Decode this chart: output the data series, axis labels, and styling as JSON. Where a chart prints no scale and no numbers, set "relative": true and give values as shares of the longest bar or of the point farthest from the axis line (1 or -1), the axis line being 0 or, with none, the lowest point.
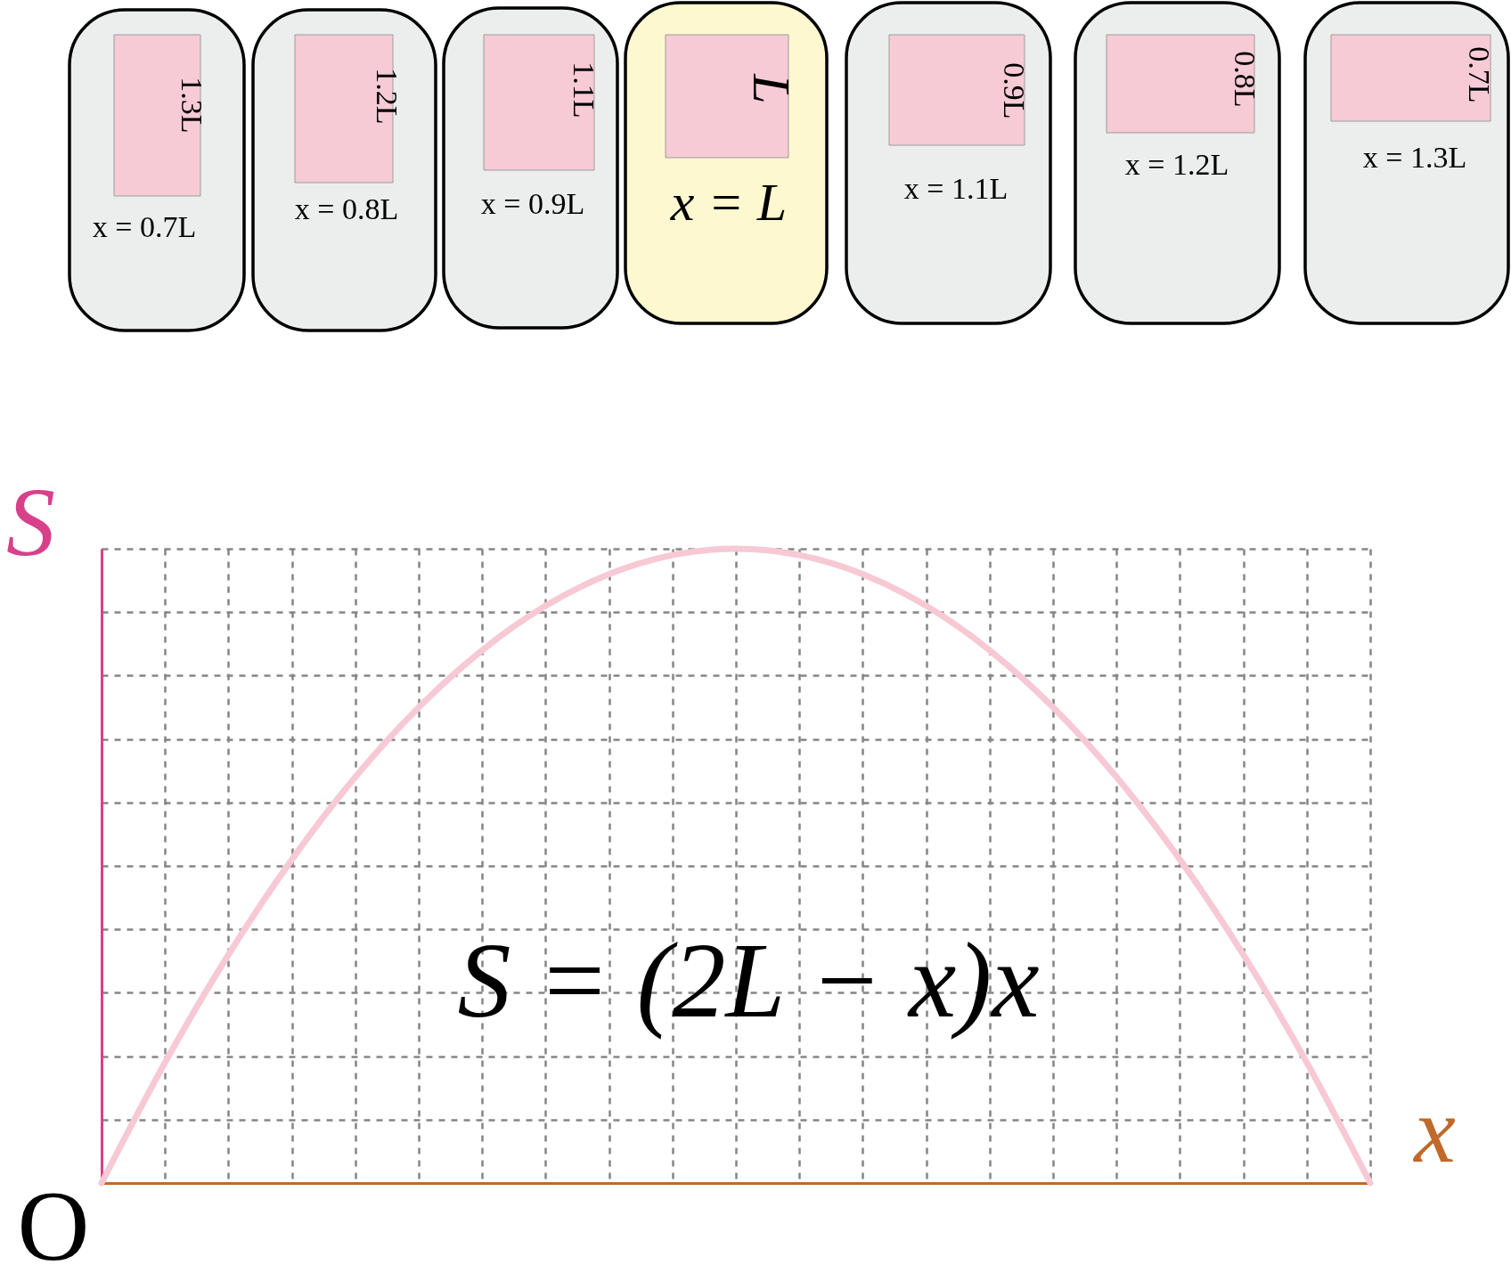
{
  "chart_data": {
    "type": "line",
    "relative": true,
    "categories": [
      null,
      null,
      null,
      null,
      null,
      null,
      null,
      null,
      null,
      null,
      null,
      null,
      null,
      null,
      null,
      null,
      null,
      null,
      null,
      null,
      null
    ],
    "series": [
      {
        "color": "#f7c9d5",
        "values": [
          0,
          0.19,
          0.36,
          0.51,
          0.64,
          0.75,
          0.84,
          0.91,
          0.96,
          0.99,
          1,
          0.99,
          0.96,
          0.91,
          0.84,
          0.75,
          0.64,
          0.51,
          0.36,
          0.19,
          0
        ]
      }
    ],
    "xlabel": "x",
    "ylabel": "S",
    "grid": true,
    "annotations": [
      "1.3L",
      "x = 0.7L",
      "1.2L",
      "x = 0.8L",
      "1.1L",
      "x = 0.9L",
      "L",
      "x = L",
      "0.9L",
      "x = 1.1L",
      "0.8L",
      "x = 1.2L",
      "0.7L",
      "x = 1.3L",
      "S = (2L − x)x",
      "O"
    ]
  }
}
